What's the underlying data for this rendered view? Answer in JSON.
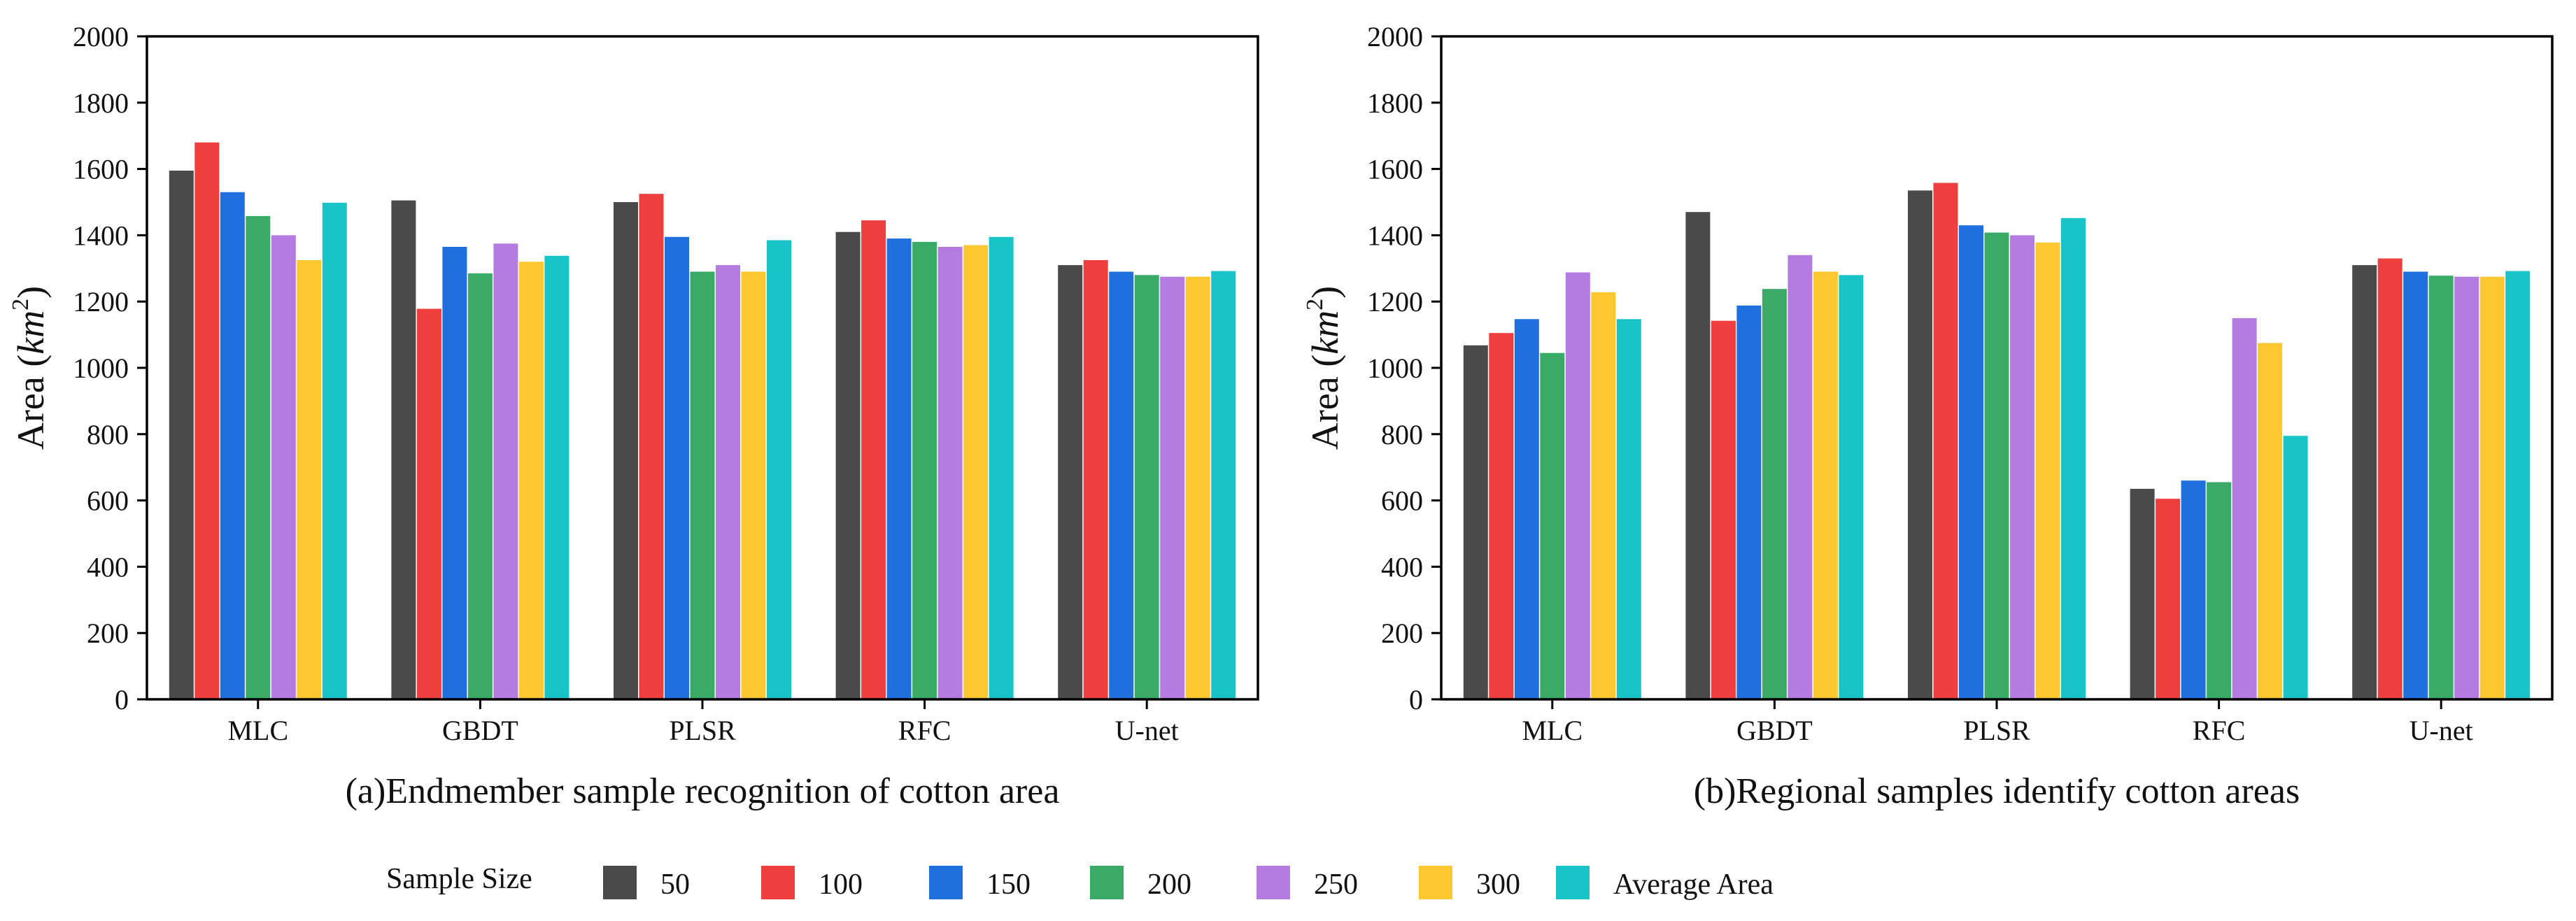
{
  "legend": {
    "title": "Sample Size",
    "placement": "bottom-center"
  },
  "chart_data": [
    {
      "type": "bar",
      "caption": "(a)Endmember sample recognition of cotton area",
      "xlabel": "",
      "ylabel_main": "Area (",
      "ylabel_unit": "km",
      "ylabel_sup": "2",
      "ylabel_close": ")",
      "ylim": [
        0,
        2000
      ],
      "yticks": [
        "0",
        "200",
        "400",
        "600",
        "800",
        "1000",
        "1200",
        "1400",
        "1600",
        "1800",
        "2000"
      ],
      "grid": false,
      "categories": [
        "MLC",
        "GBDT",
        "PLSR",
        "RFC",
        "U-net"
      ],
      "series": [
        {
          "name": "50",
          "color": "#4a4a4a",
          "values": [
            1595,
            1505,
            1500,
            1410,
            1310
          ]
        },
        {
          "name": "100",
          "color": "#ef3e3e",
          "values": [
            1680,
            1178,
            1525,
            1445,
            1325
          ]
        },
        {
          "name": "150",
          "color": "#1f6fde",
          "values": [
            1530,
            1365,
            1395,
            1390,
            1290
          ]
        },
        {
          "name": "200",
          "color": "#3aaa67",
          "values": [
            1458,
            1285,
            1290,
            1380,
            1280
          ]
        },
        {
          "name": "250",
          "color": "#b47be0",
          "values": [
            1400,
            1375,
            1310,
            1365,
            1275
          ]
        },
        {
          "name": "300",
          "color": "#fdc72f",
          "values": [
            1325,
            1320,
            1290,
            1370,
            1275
          ]
        },
        {
          "name": "Average Area",
          "color": "#18c4c8",
          "values": [
            1498,
            1338,
            1385,
            1395,
            1292
          ]
        }
      ]
    },
    {
      "type": "bar",
      "caption": "(b)Regional samples identify cotton areas",
      "xlabel": "",
      "ylabel_main": "Area (",
      "ylabel_unit": "km",
      "ylabel_sup": "2",
      "ylabel_close": ")",
      "ylim": [
        0,
        2000
      ],
      "yticks": [
        "0",
        "200",
        "400",
        "600",
        "800",
        "1000",
        "1200",
        "1400",
        "1600",
        "1800",
        "2000"
      ],
      "grid": false,
      "categories": [
        "MLC",
        "GBDT",
        "PLSR",
        "RFC",
        "U-net"
      ],
      "series": [
        {
          "name": "50",
          "color": "#4a4a4a",
          "values": [
            1068,
            1470,
            1535,
            635,
            1310
          ]
        },
        {
          "name": "100",
          "color": "#ef3e3e",
          "values": [
            1105,
            1142,
            1558,
            605,
            1330
          ]
        },
        {
          "name": "150",
          "color": "#1f6fde",
          "values": [
            1147,
            1188,
            1430,
            660,
            1290
          ]
        },
        {
          "name": "200",
          "color": "#3aaa67",
          "values": [
            1045,
            1238,
            1408,
            655,
            1278
          ]
        },
        {
          "name": "250",
          "color": "#b47be0",
          "values": [
            1288,
            1340,
            1400,
            1150,
            1275
          ]
        },
        {
          "name": "300",
          "color": "#fdc72f",
          "values": [
            1228,
            1290,
            1378,
            1075,
            1275
          ]
        },
        {
          "name": "Average Area",
          "color": "#18c4c8",
          "values": [
            1147,
            1280,
            1452,
            795,
            1292
          ]
        }
      ]
    }
  ]
}
